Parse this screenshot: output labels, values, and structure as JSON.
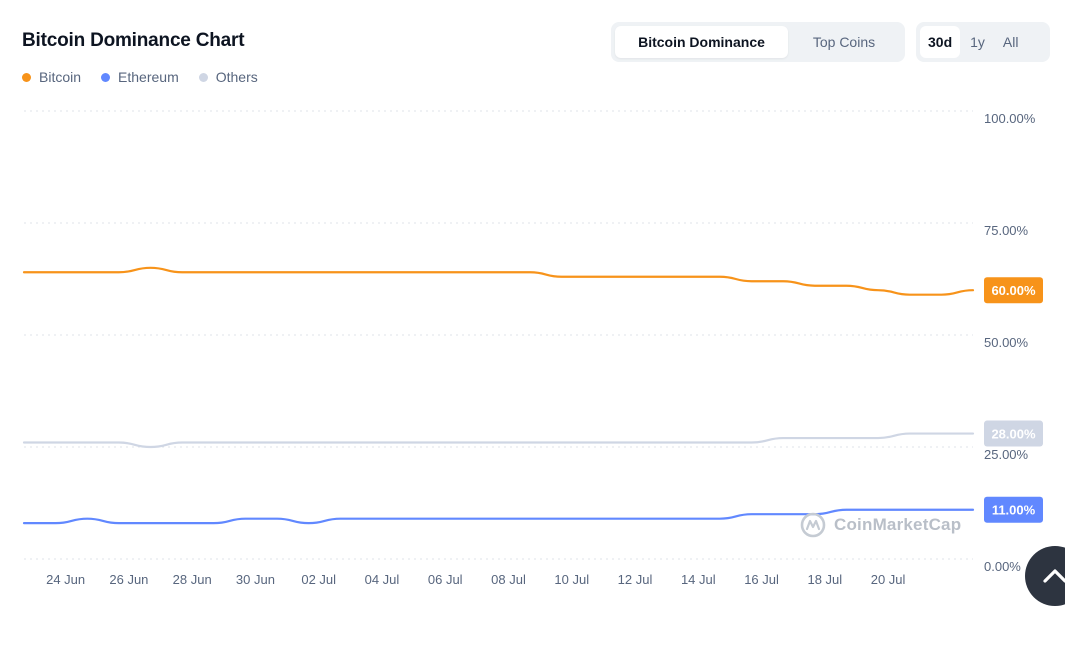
{
  "page": {
    "title": "Bitcoin Dominance Chart",
    "tabs": [
      {
        "label": "Bitcoin Dominance",
        "active": true
      },
      {
        "label": "Top Coins",
        "active": false
      }
    ],
    "ranges": [
      {
        "label": "30d",
        "active": true
      },
      {
        "label": "1y",
        "active": false
      },
      {
        "label": "All",
        "active": false
      }
    ],
    "legend": [
      {
        "label": "Bitcoin",
        "color": "#f7931a"
      },
      {
        "label": "Ethereum",
        "color": "#6188ff"
      },
      {
        "label": "Others",
        "color": "#cfd6e4"
      }
    ],
    "watermark": "CoinMarketCap",
    "scroll_top_icon": "chevron-up-icon"
  },
  "chart_data": {
    "type": "line",
    "title": "Bitcoin Dominance Chart",
    "xlabel": "",
    "ylabel": "",
    "ylim": [
      0,
      100
    ],
    "y_ticks": [
      "100.00%",
      "75.00%",
      "50.00%",
      "25.00%",
      "0.00%"
    ],
    "y_tick_values": [
      100,
      75,
      50,
      25,
      0
    ],
    "x_tick_labels": [
      "24 Jun",
      "26 Jun",
      "28 Jun",
      "30 Jun",
      "02 Jul",
      "04 Jul",
      "06 Jul",
      "08 Jul",
      "10 Jul",
      "12 Jul",
      "14 Jul",
      "16 Jul",
      "18 Jul",
      "20 Jul"
    ],
    "x_tick_index": [
      1,
      3,
      5,
      7,
      9,
      11,
      13,
      15,
      17,
      19,
      21,
      23,
      25,
      27
    ],
    "x_count": 31,
    "y_axis_side": "right",
    "grid": true,
    "legend_position": "top-left",
    "series": [
      {
        "name": "Bitcoin",
        "color": "#f7931a",
        "last_label": "60.00%",
        "values": [
          64,
          64,
          64,
          64,
          65,
          64,
          64,
          64,
          64,
          64,
          64,
          64,
          64,
          64,
          64,
          64,
          64,
          63,
          63,
          63,
          63,
          63,
          63,
          62,
          62,
          61,
          61,
          60,
          59,
          59,
          60
        ]
      },
      {
        "name": "Others",
        "color": "#cfd6e4",
        "last_label": "28.00%",
        "values": [
          26,
          26,
          26,
          26,
          25,
          26,
          26,
          26,
          26,
          26,
          26,
          26,
          26,
          26,
          26,
          26,
          26,
          26,
          26,
          26,
          26,
          26,
          26,
          26,
          27,
          27,
          27,
          27,
          28,
          28,
          28
        ]
      },
      {
        "name": "Ethereum",
        "color": "#6188ff",
        "last_label": "11.00%",
        "values": [
          8,
          8,
          9,
          8,
          8,
          8,
          8,
          9,
          9,
          8,
          9,
          9,
          9,
          9,
          9,
          9,
          9,
          9,
          9,
          9,
          9,
          9,
          9,
          10,
          10,
          10,
          11,
          11,
          11,
          11,
          11
        ]
      }
    ]
  }
}
